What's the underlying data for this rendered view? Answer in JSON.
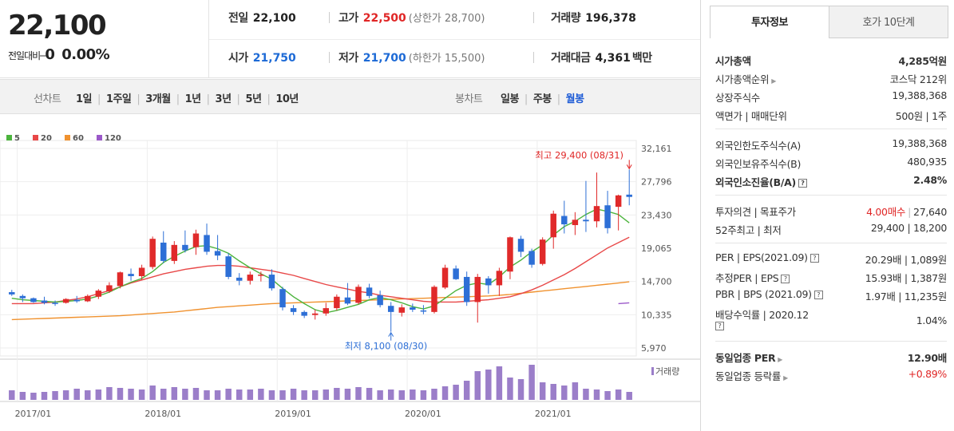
{
  "price": {
    "current": "22,100",
    "change_label": "전일대비",
    "change_symbol": "━",
    "change_value": "0",
    "change_pct": "0.00%"
  },
  "stats": {
    "prev_label": "전일",
    "prev_value": "22,100",
    "high_label": "고가",
    "high_value": "22,500",
    "upper_limit": "(상한가 28,700)",
    "volume_label": "거래량",
    "volume_value": "196,378",
    "open_label": "시가",
    "open_value": "21,750",
    "low_label": "저가",
    "low_value": "21,700",
    "lower_limit": "(하한가 15,500)",
    "amount_label": "거래대금",
    "amount_value": "4,361",
    "amount_unit": "백만"
  },
  "period_bar": {
    "line_label": "선차트",
    "line_options": [
      "1일",
      "1주일",
      "3개월",
      "1년",
      "3년",
      "5년",
      "10년"
    ],
    "candle_label": "봉차트",
    "candle_options": [
      "일봉",
      "주봉",
      "월봉"
    ],
    "candle_selected": "월봉"
  },
  "chart_data": {
    "type": "candlestick",
    "legend": [
      {
        "name": "5",
        "color": "#4cb43d"
      },
      {
        "name": "20",
        "color": "#e84848"
      },
      {
        "name": "60",
        "color": "#f0922f"
      },
      {
        "name": "120",
        "color": "#9b59c9"
      }
    ],
    "y_ticks": [
      "32,161",
      "27,796",
      "23,430",
      "19,065",
      "14,700",
      "10,335",
      "5,970"
    ],
    "y_tick_values": [
      32161,
      27796,
      23430,
      19065,
      14700,
      10335,
      5970
    ],
    "x_ticks": [
      "2017/01",
      "2018/01",
      "2019/01",
      "2020/01",
      "2021/01"
    ],
    "start_month": "2016/12",
    "months": 58,
    "high_annotation": "최고 29,400 (08/31)",
    "low_annotation": "최저 8,100 (08/30)",
    "volume_label": "거래량",
    "ohlc": [
      [
        13300,
        13600,
        12800,
        13000
      ],
      [
        12800,
        13000,
        12000,
        12500
      ],
      [
        12500,
        12600,
        11900,
        12000
      ],
      [
        12200,
        12700,
        11700,
        11900
      ],
      [
        11900,
        12200,
        11500,
        11800
      ],
      [
        11900,
        12500,
        11800,
        12400
      ],
      [
        12300,
        12800,
        11900,
        12100
      ],
      [
        12100,
        13000,
        12000,
        12800
      ],
      [
        12700,
        13700,
        12400,
        13500
      ],
      [
        13400,
        14600,
        13200,
        14200
      ],
      [
        14100,
        16000,
        13800,
        15900
      ],
      [
        15700,
        16400,
        14800,
        15400
      ],
      [
        15400,
        16900,
        14900,
        16500
      ],
      [
        16600,
        20600,
        16300,
        20300
      ],
      [
        19800,
        21300,
        17100,
        17400
      ],
      [
        17400,
        20000,
        17000,
        19500
      ],
      [
        19500,
        21400,
        18500,
        18800
      ],
      [
        19200,
        21500,
        18200,
        21000
      ],
      [
        20800,
        22300,
        18200,
        18600
      ],
      [
        18700,
        20800,
        17500,
        18100
      ],
      [
        18000,
        18400,
        15000,
        15300
      ],
      [
        15200,
        15800,
        14200,
        14800
      ],
      [
        14800,
        16000,
        14300,
        15600
      ],
      [
        15500,
        16000,
        14700,
        15600
      ],
      [
        15600,
        16300,
        13500,
        13800
      ],
      [
        13700,
        14000,
        10900,
        11300
      ],
      [
        11200,
        11600,
        10300,
        10700
      ],
      [
        10700,
        10900,
        9900,
        10200
      ],
      [
        10300,
        11000,
        9700,
        10500
      ],
      [
        10500,
        11900,
        10200,
        11200
      ],
      [
        11200,
        13000,
        10900,
        12700
      ],
      [
        12600,
        14500,
        11600,
        11800
      ],
      [
        11900,
        14300,
        11700,
        14000
      ],
      [
        13900,
        14400,
        12500,
        12800
      ],
      [
        12900,
        13500,
        11300,
        11600
      ],
      [
        11500,
        12000,
        8100,
        10700
      ],
      [
        10600,
        11700,
        10100,
        11300
      ],
      [
        11300,
        11800,
        10700,
        11000
      ],
      [
        10900,
        11600,
        10400,
        10800
      ],
      [
        10700,
        14200,
        10500,
        14000
      ],
      [
        13900,
        16900,
        13700,
        16500
      ],
      [
        16400,
        16800,
        14900,
        15000
      ],
      [
        15300,
        16000,
        11500,
        12000
      ],
      [
        12000,
        15700,
        9300,
        15300
      ],
      [
        15100,
        15400,
        13100,
        14200
      ],
      [
        14200,
        16500,
        12800,
        16100
      ],
      [
        16000,
        20600,
        15000,
        20500
      ],
      [
        20300,
        20700,
        17900,
        18600
      ],
      [
        18700,
        19000,
        16500,
        16900
      ],
      [
        17000,
        20500,
        16800,
        20200
      ],
      [
        20500,
        24000,
        19000,
        23600
      ],
      [
        23300,
        25300,
        21000,
        22200
      ],
      [
        22100,
        23800,
        20800,
        22800
      ],
      [
        22800,
        27900,
        21200,
        22600
      ],
      [
        22600,
        29000,
        21800,
        24600
      ],
      [
        24700,
        26600,
        21000,
        21700
      ],
      [
        24500,
        26100,
        21400,
        26000
      ],
      [
        26100,
        29400,
        24700,
        25800
      ]
    ],
    "ma5": [
      12500,
      12300,
      12200,
      12100,
      12000,
      12100,
      12200,
      12400,
      12800,
      13300,
      14000,
      14600,
      15100,
      16000,
      17200,
      18000,
      18700,
      19300,
      19400,
      19000,
      18400,
      17400,
      16500,
      15700,
      15000,
      13800,
      12700,
      11800,
      11000,
      10600,
      10900,
      11300,
      11700,
      12300,
      12600,
      12300,
      11900,
      11400,
      11100,
      11500,
      12500,
      13500,
      14200,
      14500,
      14300,
      15300,
      16600,
      17500,
      18600,
      19500,
      20800,
      21900,
      22600,
      23500,
      24200,
      23900,
      23500,
      22400
    ],
    "ma20": [
      11800,
      11800,
      11800,
      11900,
      12000,
      12200,
      12400,
      12700,
      13100,
      13500,
      14000,
      14500,
      14900,
      15300,
      15700,
      16000,
      16300,
      16500,
      16700,
      16800,
      16800,
      16700,
      16500,
      16300,
      16100,
      15800,
      15500,
      15100,
      14700,
      14300,
      14000,
      13700,
      13400,
      13200,
      12900,
      12700,
      12500,
      12300,
      12100,
      12000,
      12000,
      12000,
      12100,
      12200,
      12300,
      12500,
      12700,
      13100,
      13600,
      14200,
      14900,
      15600,
      16400,
      17300,
      18200,
      19100,
      19800,
      20500
    ],
    "ma60": [
      9700,
      9750,
      9800,
      9850,
      9900,
      9950,
      10000,
      10050,
      10100,
      10150,
      10200,
      10300,
      10400,
      10500,
      10600,
      10700,
      10850,
      11000,
      11150,
      11300,
      11400,
      11500,
      11600,
      11700,
      11800,
      11850,
      11900,
      11950,
      12000,
      12050,
      12100,
      12150,
      12200,
      12250,
      12300,
      12350,
      12400,
      12450,
      12500,
      12550,
      12600,
      12650,
      12700,
      12750,
      12800,
      12900,
      13000,
      13150,
      13300,
      13450,
      13600,
      13750,
      13900,
      14050,
      14200,
      14350,
      14500,
      14650
    ],
    "ma120": [
      11800,
      11900
    ],
    "volume": [
      12,
      10,
      9,
      10,
      11,
      12,
      14,
      12,
      13,
      16,
      15,
      14,
      13,
      18,
      14,
      16,
      14,
      15,
      12,
      12,
      14,
      13,
      13,
      14,
      12,
      12,
      14,
      12,
      12,
      13,
      15,
      14,
      16,
      15,
      12,
      13,
      12,
      13,
      12,
      14,
      17,
      19,
      24,
      36,
      38,
      42,
      28,
      26,
      44,
      22,
      20,
      18,
      22,
      14,
      13,
      11,
      13,
      10
    ]
  },
  "invest": {
    "tab_info": "투자정보",
    "tab_hoga": "호가 10단계",
    "rows1": [
      {
        "k": "시가총액",
        "v": "4,285억원",
        "bold": true
      },
      {
        "k": "시가총액순위",
        "v": "코스닥 212위",
        "arrow": true
      },
      {
        "k": "상장주식수",
        "v": "19,388,368"
      },
      {
        "k": "액면가 | 매매단위",
        "v": "500원 | 1주"
      }
    ],
    "rows2": [
      {
        "k": "외국인한도주식수(A)",
        "v": "19,388,368"
      },
      {
        "k": "외국인보유주식수(B)",
        "v": "480,935"
      },
      {
        "k": "외국인소진율(B/A)",
        "v": "2.48%",
        "bold": true,
        "q": true
      }
    ],
    "opinion_label": "투자의견 | 목표주가",
    "opinion_value": "4.00매수",
    "target_value": "27,640",
    "w52_label": "52주최고 | 최저",
    "w52_value": "29,400 | 18,200",
    "rows3": [
      {
        "k": "PER | EPS(2021.09)",
        "v": "20.29배 | 1,089원",
        "q": true
      },
      {
        "k": "추정PER | EPS",
        "v": "15.93배 | 1,387원",
        "q": true
      },
      {
        "k": "PBR | BPS (2021.09)",
        "v": "1.97배 | 11,235원",
        "q": true
      }
    ],
    "div_label": "배당수익률 | 2020.12",
    "div_value": "1.04%",
    "peer_per_label": "동일업종 PER",
    "peer_per_value": "12.90배",
    "peer_chg_label": "동일업종 등락률",
    "peer_chg_value": "+0.89%"
  }
}
